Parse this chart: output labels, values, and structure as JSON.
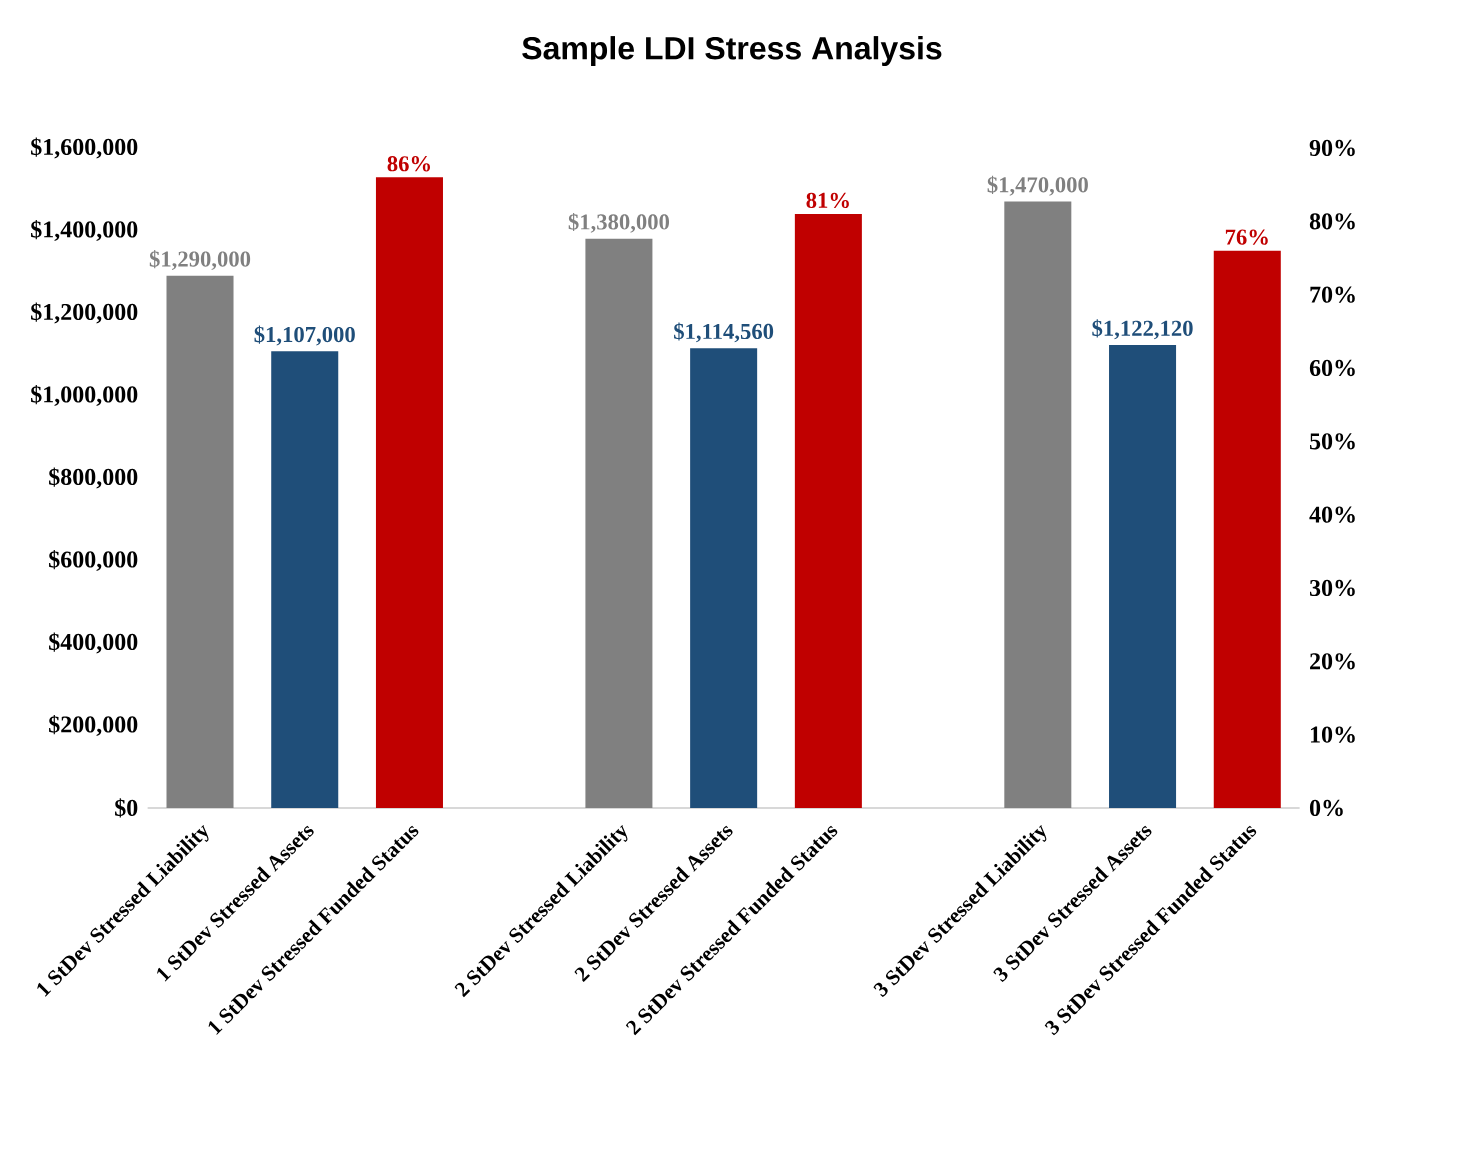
{
  "chart_data": {
    "type": "bar",
    "title": "Sample LDI Stress Analysis",
    "categories": [
      "1 StDev Stressed Liability",
      "1 StDev Stressed Assets",
      "1 StDev Stressed Funded Status",
      null,
      "2 StDev Stressed Liability",
      "2 StDev Stressed Assets",
      "2 StDev Stressed Funded Status",
      null,
      "3 StDev Stressed Liability",
      "3 StDev Stressed Assets",
      "3 StDev Stressed Funded Status"
    ],
    "series": [
      {
        "color": "#808080",
        "values": [
          1290000,
          null,
          null,
          null,
          1380000,
          null,
          null,
          null,
          1470000,
          null,
          null
        ],
        "value_labels": [
          "$1,290,000",
          null,
          null,
          null,
          "$1,380,000",
          null,
          null,
          null,
          "$1,470,000",
          null,
          null
        ]
      },
      {
        "color": "#1f4e79",
        "values": [
          null,
          1107000,
          null,
          null,
          null,
          1114560,
          null,
          null,
          null,
          1122120,
          null
        ],
        "value_labels": [
          null,
          "$1,107,000",
          null,
          null,
          null,
          "$1,114,560",
          null,
          null,
          null,
          "$1,122,120",
          null
        ]
      },
      {
        "color": "#c00000",
        "axis": "y2",
        "values": [
          null,
          null,
          86,
          null,
          null,
          null,
          81,
          null,
          null,
          null,
          76
        ],
        "value_labels": [
          null,
          null,
          "86%",
          null,
          null,
          null,
          "81%",
          null,
          null,
          null,
          "76%"
        ]
      }
    ],
    "ylim": [
      0,
      1600000
    ],
    "yticks": [
      {
        "value": 0,
        "label": "$0"
      },
      {
        "value": 200000,
        "label": "$200,000"
      },
      {
        "value": 400000,
        "label": "$400,000"
      },
      {
        "value": 600000,
        "label": "$600,000"
      },
      {
        "value": 800000,
        "label": "$800,000"
      },
      {
        "value": 1000000,
        "label": "$1,000,000"
      },
      {
        "value": 1200000,
        "label": "$1,200,000"
      },
      {
        "value": 1400000,
        "label": "$1,400,000"
      },
      {
        "value": 1600000,
        "label": "$1,600,000"
      }
    ],
    "y2lim": [
      0,
      90
    ],
    "y2ticks": [
      {
        "value": 0,
        "label": "0%"
      },
      {
        "value": 10,
        "label": "10%"
      },
      {
        "value": 20,
        "label": "20%"
      },
      {
        "value": 30,
        "label": "30%"
      },
      {
        "value": 40,
        "label": "40%"
      },
      {
        "value": 50,
        "label": "50%"
      },
      {
        "value": 60,
        "label": "60%"
      },
      {
        "value": 70,
        "label": "70%"
      },
      {
        "value": 80,
        "label": "80%"
      },
      {
        "value": 90,
        "label": "90%"
      }
    ]
  }
}
